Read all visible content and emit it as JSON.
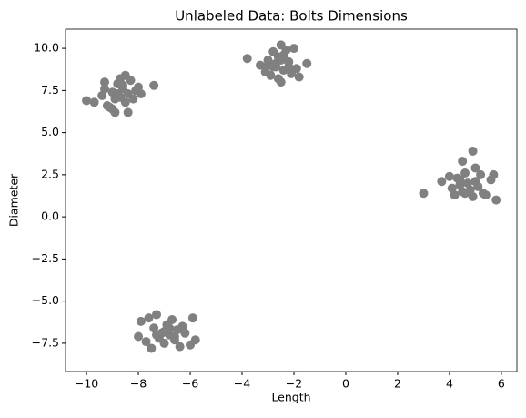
{
  "chart_data": {
    "type": "scatter",
    "title": "Unlabeled Data: Bolts Dimensions",
    "xlabel": "Length",
    "ylabel": "Diameter",
    "color": "#808080",
    "grid": false,
    "xlim": [
      -10.81,
      6.6
    ],
    "ylim": [
      -9.18,
      11.14
    ],
    "xticks": [
      {
        "value": -10,
        "label": "−10"
      },
      {
        "value": -8,
        "label": "−8"
      },
      {
        "value": -6,
        "label": "−6"
      },
      {
        "value": -4,
        "label": "−4"
      },
      {
        "value": -2,
        "label": "−2"
      },
      0,
      2,
      4,
      6
    ],
    "yticks": [
      {
        "value": -7.5,
        "label": "−7.5"
      },
      {
        "value": -5,
        "label": "−5.0"
      },
      {
        "value": -2.5,
        "label": "−2.5"
      },
      {
        "value": 0,
        "label": "0.0"
      },
      2.5,
      {
        "value": 5,
        "label": "5.0"
      },
      7.5,
      {
        "value": 10,
        "label": "10.0"
      }
    ],
    "x": [
      -10.0,
      -9.7,
      -9.4,
      -9.3,
      -9.2,
      -9.0,
      -9.0,
      -8.9,
      -8.8,
      -8.7,
      -8.7,
      -8.6,
      -8.5,
      -8.5,
      -8.4,
      -8.4,
      -8.3,
      -8.2,
      -8.1,
      -8.0,
      -7.9,
      -9.1,
      -8.8,
      -8.6,
      -7.4,
      -9.3,
      -8.9,
      -3.8,
      -3.3,
      -3.1,
      -3.0,
      -2.9,
      -2.8,
      -2.7,
      -2.6,
      -2.5,
      -2.5,
      -2.4,
      -2.3,
      -2.2,
      -2.1,
      -2.0,
      -1.9,
      -1.8,
      -1.5,
      -2.6,
      -2.8,
      -2.4,
      -3.0,
      -2.2,
      -2.5,
      -2.7,
      3.0,
      3.7,
      4.0,
      4.1,
      4.2,
      4.3,
      4.4,
      4.5,
      4.5,
      4.6,
      4.7,
      4.8,
      4.9,
      4.9,
      5.0,
      5.1,
      5.2,
      5.3,
      5.4,
      5.6,
      5.7,
      5.8,
      4.4,
      4.6,
      5.0,
      -8.0,
      -7.9,
      -7.7,
      -7.6,
      -7.5,
      -7.4,
      -7.3,
      -7.2,
      -7.1,
      -7.0,
      -6.9,
      -6.8,
      -6.7,
      -6.6,
      -6.5,
      -6.4,
      -6.3,
      -6.2,
      -6.0,
      -5.9,
      -5.8,
      -7.0,
      -6.6,
      -7.3,
      -6.8
    ],
    "y": [
      6.9,
      6.8,
      7.2,
      7.6,
      6.6,
      7.4,
      6.4,
      6.2,
      7.9,
      7.1,
      8.2,
      7.6,
      6.8,
      8.4,
      6.2,
      7.3,
      8.1,
      7.0,
      7.5,
      7.7,
      7.3,
      6.5,
      7.3,
      7.8,
      7.8,
      8.0,
      7.0,
      9.4,
      9.0,
      8.6,
      9.3,
      8.4,
      9.8,
      8.9,
      9.5,
      10.2,
      8.0,
      8.7,
      9.9,
      9.2,
      8.5,
      10.0,
      8.8,
      8.3,
      9.1,
      8.2,
      8.9,
      9.6,
      9.0,
      8.9,
      9.3,
      9.1,
      1.4,
      2.1,
      2.4,
      1.7,
      1.3,
      2.3,
      1.9,
      3.3,
      1.5,
      2.6,
      2.0,
      1.6,
      3.9,
      1.2,
      2.9,
      1.8,
      2.5,
      1.4,
      1.3,
      2.2,
      2.5,
      1.0,
      2.2,
      1.4,
      2.1,
      -7.1,
      -6.2,
      -7.4,
      -6.0,
      -7.8,
      -6.6,
      -5.8,
      -7.2,
      -6.9,
      -7.5,
      -6.4,
      -7.0,
      -6.1,
      -7.3,
      -6.7,
      -7.7,
      -6.5,
      -6.9,
      -7.6,
      -6.0,
      -7.3,
      -6.8,
      -7.1,
      -7.0,
      -6.6
    ]
  }
}
